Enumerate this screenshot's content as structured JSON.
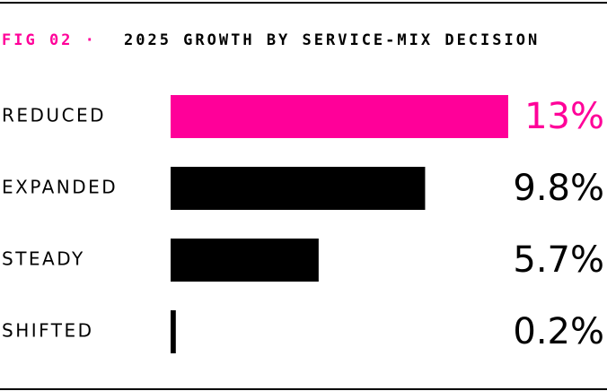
{
  "chart_data": {
    "type": "bar",
    "orientation": "horizontal",
    "figure_label": "FIG 02 ·",
    "title": "2025 GROWTH BY SERVICE-MIX DECISION",
    "categories": [
      "REDUCED",
      "EXPANDED",
      "STEADY",
      "SHIFTED"
    ],
    "values": [
      13,
      9.8,
      5.7,
      0.2
    ],
    "value_labels": [
      "13%",
      "9.8%",
      "5.7%",
      "0.2%"
    ],
    "colors": [
      "#ff0099",
      "#000000",
      "#000000",
      "#000000"
    ],
    "accent_color": "#ff0099"
  }
}
